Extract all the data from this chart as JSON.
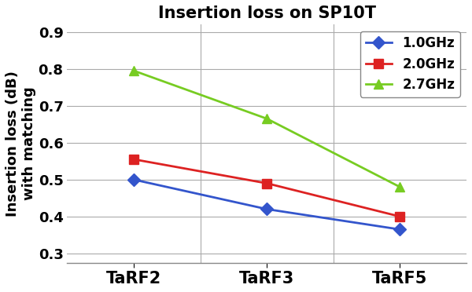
{
  "title": "Insertion loss on SP10T",
  "ylabel_line1": "Insertion loss (dB)",
  "ylabel_line2": "with matching",
  "x_labels": [
    "TaRF2",
    "TaRF3",
    "TaRF5"
  ],
  "series": [
    {
      "label": "1.0GHz",
      "values": [
        0.5,
        0.42,
        0.365
      ],
      "color": "#3355cc",
      "marker": "D",
      "markersize": 8,
      "linewidth": 2.0
    },
    {
      "label": "2.0GHz",
      "values": [
        0.555,
        0.49,
        0.4
      ],
      "color": "#dd2222",
      "marker": "s",
      "markersize": 8,
      "linewidth": 2.0
    },
    {
      "label": "2.7GHz",
      "values": [
        0.795,
        0.665,
        0.48
      ],
      "color": "#77cc22",
      "marker": "^",
      "markersize": 9,
      "linewidth": 2.0
    }
  ],
  "ylim": [
    0.275,
    0.92
  ],
  "yticks": [
    0.3,
    0.4,
    0.5,
    0.6,
    0.7,
    0.8,
    0.9
  ],
  "background_color": "#ffffff",
  "plot_bg_color": "#ffffff",
  "title_fontsize": 15,
  "axis_label_fontsize": 13,
  "tick_fontsize": 13,
  "legend_fontsize": 12,
  "x_tick_fontsize": 15
}
